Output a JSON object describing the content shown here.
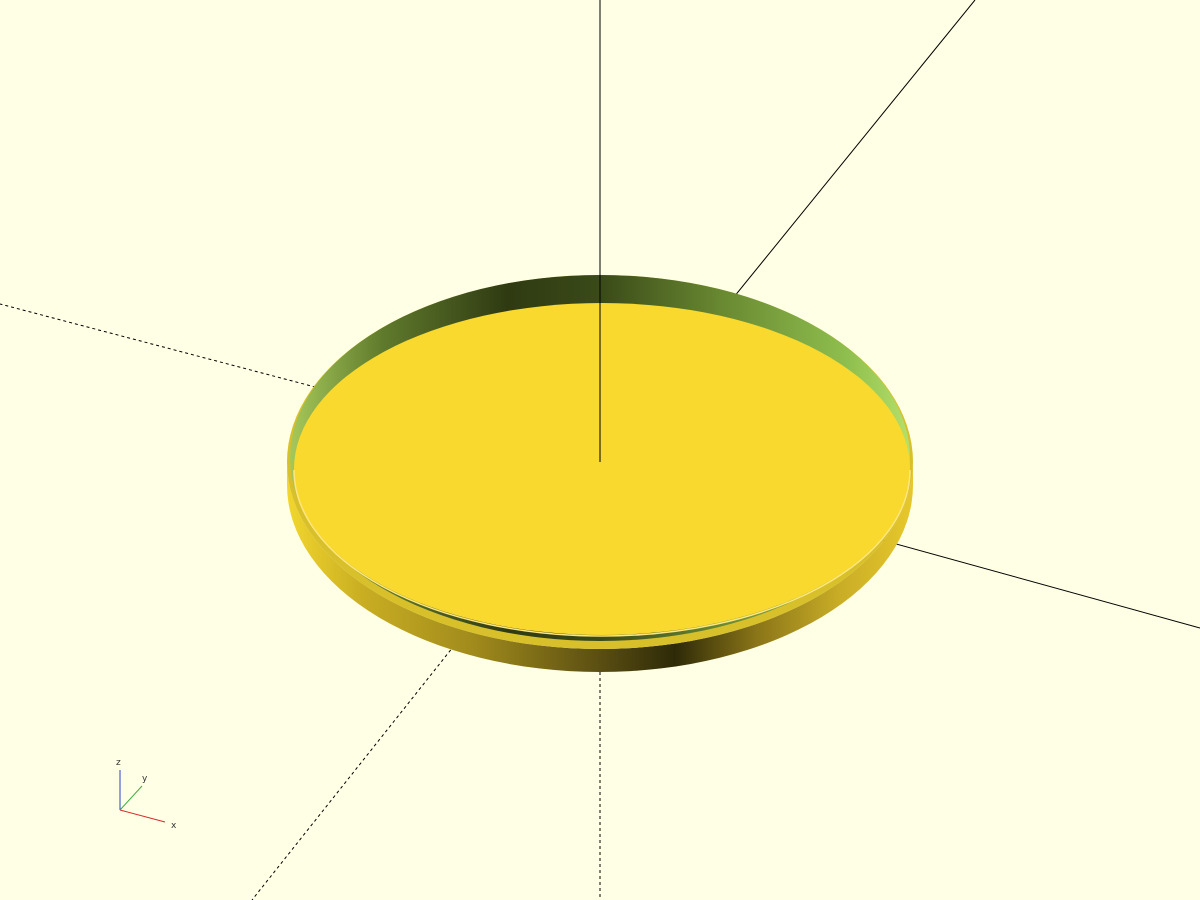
{
  "viewport": {
    "background": "#ffffe5",
    "model": "disc",
    "colors": {
      "top_face": "#f9d72c",
      "side_bright": "#f0d02a",
      "side_dark": "#3d3a0a",
      "inner_wall_dark": "#4a5a20",
      "inner_wall_light": "#8fbd4a",
      "axis_line": "#000000"
    }
  },
  "axes_indicator": {
    "z_label": "z",
    "y_label": "y",
    "x_label": "x",
    "x_color": "#d42a2a",
    "y_color": "#3fae3f",
    "z_color": "#2a3fd4"
  }
}
